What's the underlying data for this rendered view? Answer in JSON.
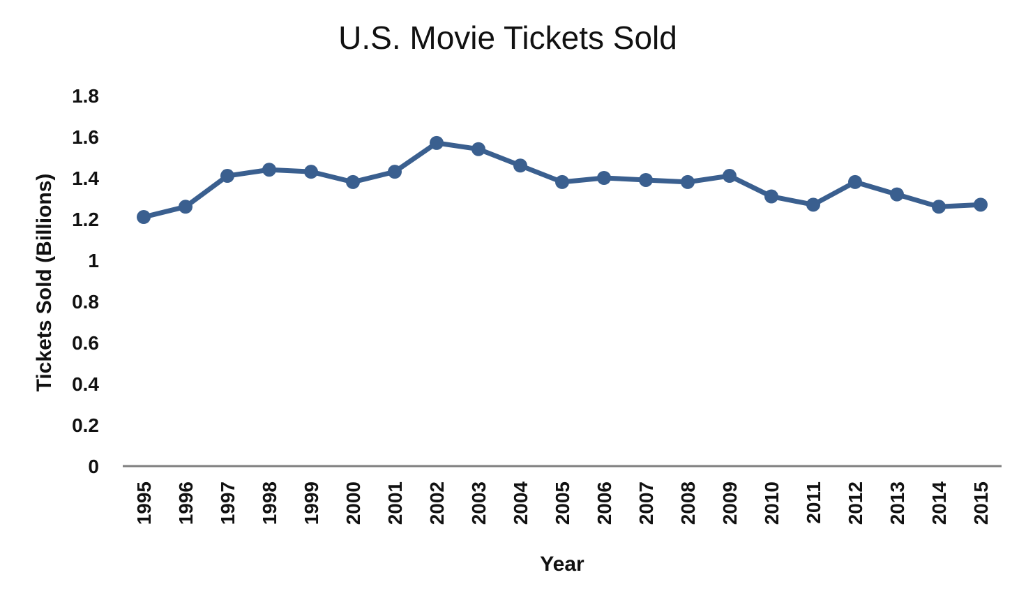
{
  "chart_data": {
    "type": "line",
    "title": "U.S. Movie Tickets Sold",
    "xlabel": "Year",
    "ylabel": "Tickets Sold (Billions)",
    "ylim": [
      0,
      1.8
    ],
    "yticks": [
      "0",
      "0.2",
      "0.4",
      "0.6",
      "0.8",
      "1",
      "1.2",
      "1.4",
      "1.6",
      "1.8"
    ],
    "grid": false,
    "legend": "none",
    "categories": [
      "1995",
      "1996",
      "1997",
      "1998",
      "1999",
      "2000",
      "2001",
      "2002",
      "2003",
      "2004",
      "2005",
      "2006",
      "2007",
      "2008",
      "2009",
      "2010",
      "2011",
      "2012",
      "2013",
      "2014",
      "2015"
    ],
    "series": [
      {
        "color": "#3a5f8f",
        "values": [
          1.21,
          1.26,
          1.41,
          1.44,
          1.43,
          1.38,
          1.43,
          1.57,
          1.54,
          1.46,
          1.38,
          1.4,
          1.39,
          1.38,
          1.41,
          1.31,
          1.27,
          1.38,
          1.32,
          1.26,
          1.27
        ]
      }
    ]
  }
}
